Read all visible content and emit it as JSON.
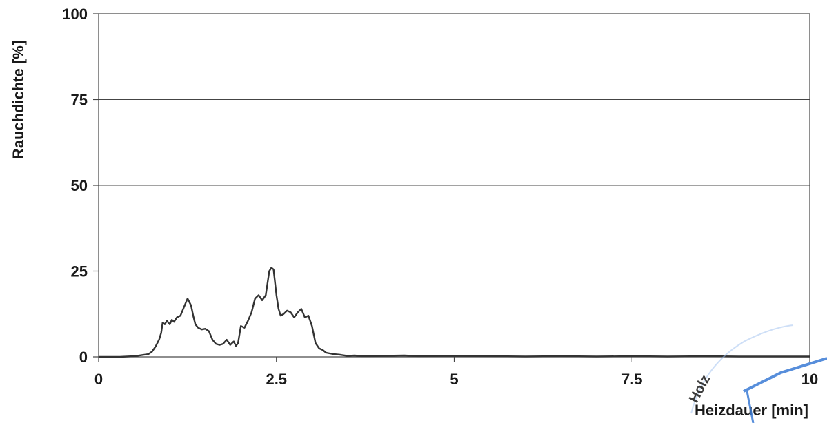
{
  "chart_data": {
    "type": "line",
    "xlabel": "Heizdauer [min]",
    "ylabel": "Rauchdichte [%]",
    "xlim": [
      0,
      10
    ],
    "ylim": [
      0,
      100
    ],
    "x_ticks": [
      0,
      2.5,
      5,
      7.5,
      10
    ],
    "x_tick_labels": [
      "0",
      "2.5",
      "5",
      "7.5",
      "10"
    ],
    "y_ticks": [
      0,
      25,
      50,
      75,
      100
    ],
    "y_tick_labels": [
      "0",
      "25",
      "50",
      "75",
      "100"
    ],
    "grid": "horizontal",
    "legend": "none",
    "line_color": "#333333",
    "series": [
      {
        "x": [
          0,
          0.3,
          0.5,
          0.6,
          0.7,
          0.75,
          0.8,
          0.85,
          0.88,
          0.9,
          0.93,
          0.96,
          1.0,
          1.03,
          1.06,
          1.1,
          1.15,
          1.2,
          1.25,
          1.3,
          1.33,
          1.36,
          1.4,
          1.45,
          1.5,
          1.55,
          1.6,
          1.65,
          1.7,
          1.75,
          1.8,
          1.85,
          1.9,
          1.93,
          1.96,
          2.0,
          2.05,
          2.1,
          2.15,
          2.2,
          2.25,
          2.3,
          2.35,
          2.4,
          2.43,
          2.46,
          2.5,
          2.53,
          2.56,
          2.6,
          2.65,
          2.7,
          2.75,
          2.8,
          2.85,
          2.9,
          2.95,
          3.0,
          3.05,
          3.1,
          3.15,
          3.2,
          3.3,
          3.4,
          3.5,
          3.6,
          3.7,
          3.8,
          4.0,
          4.3,
          4.5,
          5.0,
          5.5,
          6.0,
          6.5,
          7.0,
          7.5,
          8.0,
          8.5,
          9.0,
          9.5,
          10.0
        ],
        "y": [
          0,
          0,
          0.2,
          0.5,
          0.8,
          1.5,
          3,
          5,
          7,
          10,
          9.5,
          10.5,
          9.5,
          10.8,
          10.2,
          11.5,
          12,
          14.5,
          17,
          15,
          12,
          9.5,
          8.5,
          8,
          8.2,
          7.5,
          5,
          3.8,
          3.5,
          3.8,
          5,
          3.5,
          4.5,
          3.2,
          4,
          9,
          8.5,
          10.5,
          13,
          17,
          18,
          16.5,
          18,
          25,
          26,
          25.5,
          18,
          14,
          12,
          12.5,
          13.5,
          13,
          11.5,
          13,
          14,
          11.5,
          12,
          9,
          4,
          2.5,
          2,
          1.2,
          0.8,
          0.6,
          0.3,
          0.4,
          0.2,
          0.2,
          0.3,
          0.4,
          0.2,
          0.3,
          0.2,
          0.1,
          0.2,
          0.1,
          0.2,
          0.1,
          0.2,
          0.1,
          0.1,
          0.1
        ]
      }
    ]
  },
  "stamp": {
    "text_holz": "Holz",
    "color": "#3a7bd5"
  }
}
